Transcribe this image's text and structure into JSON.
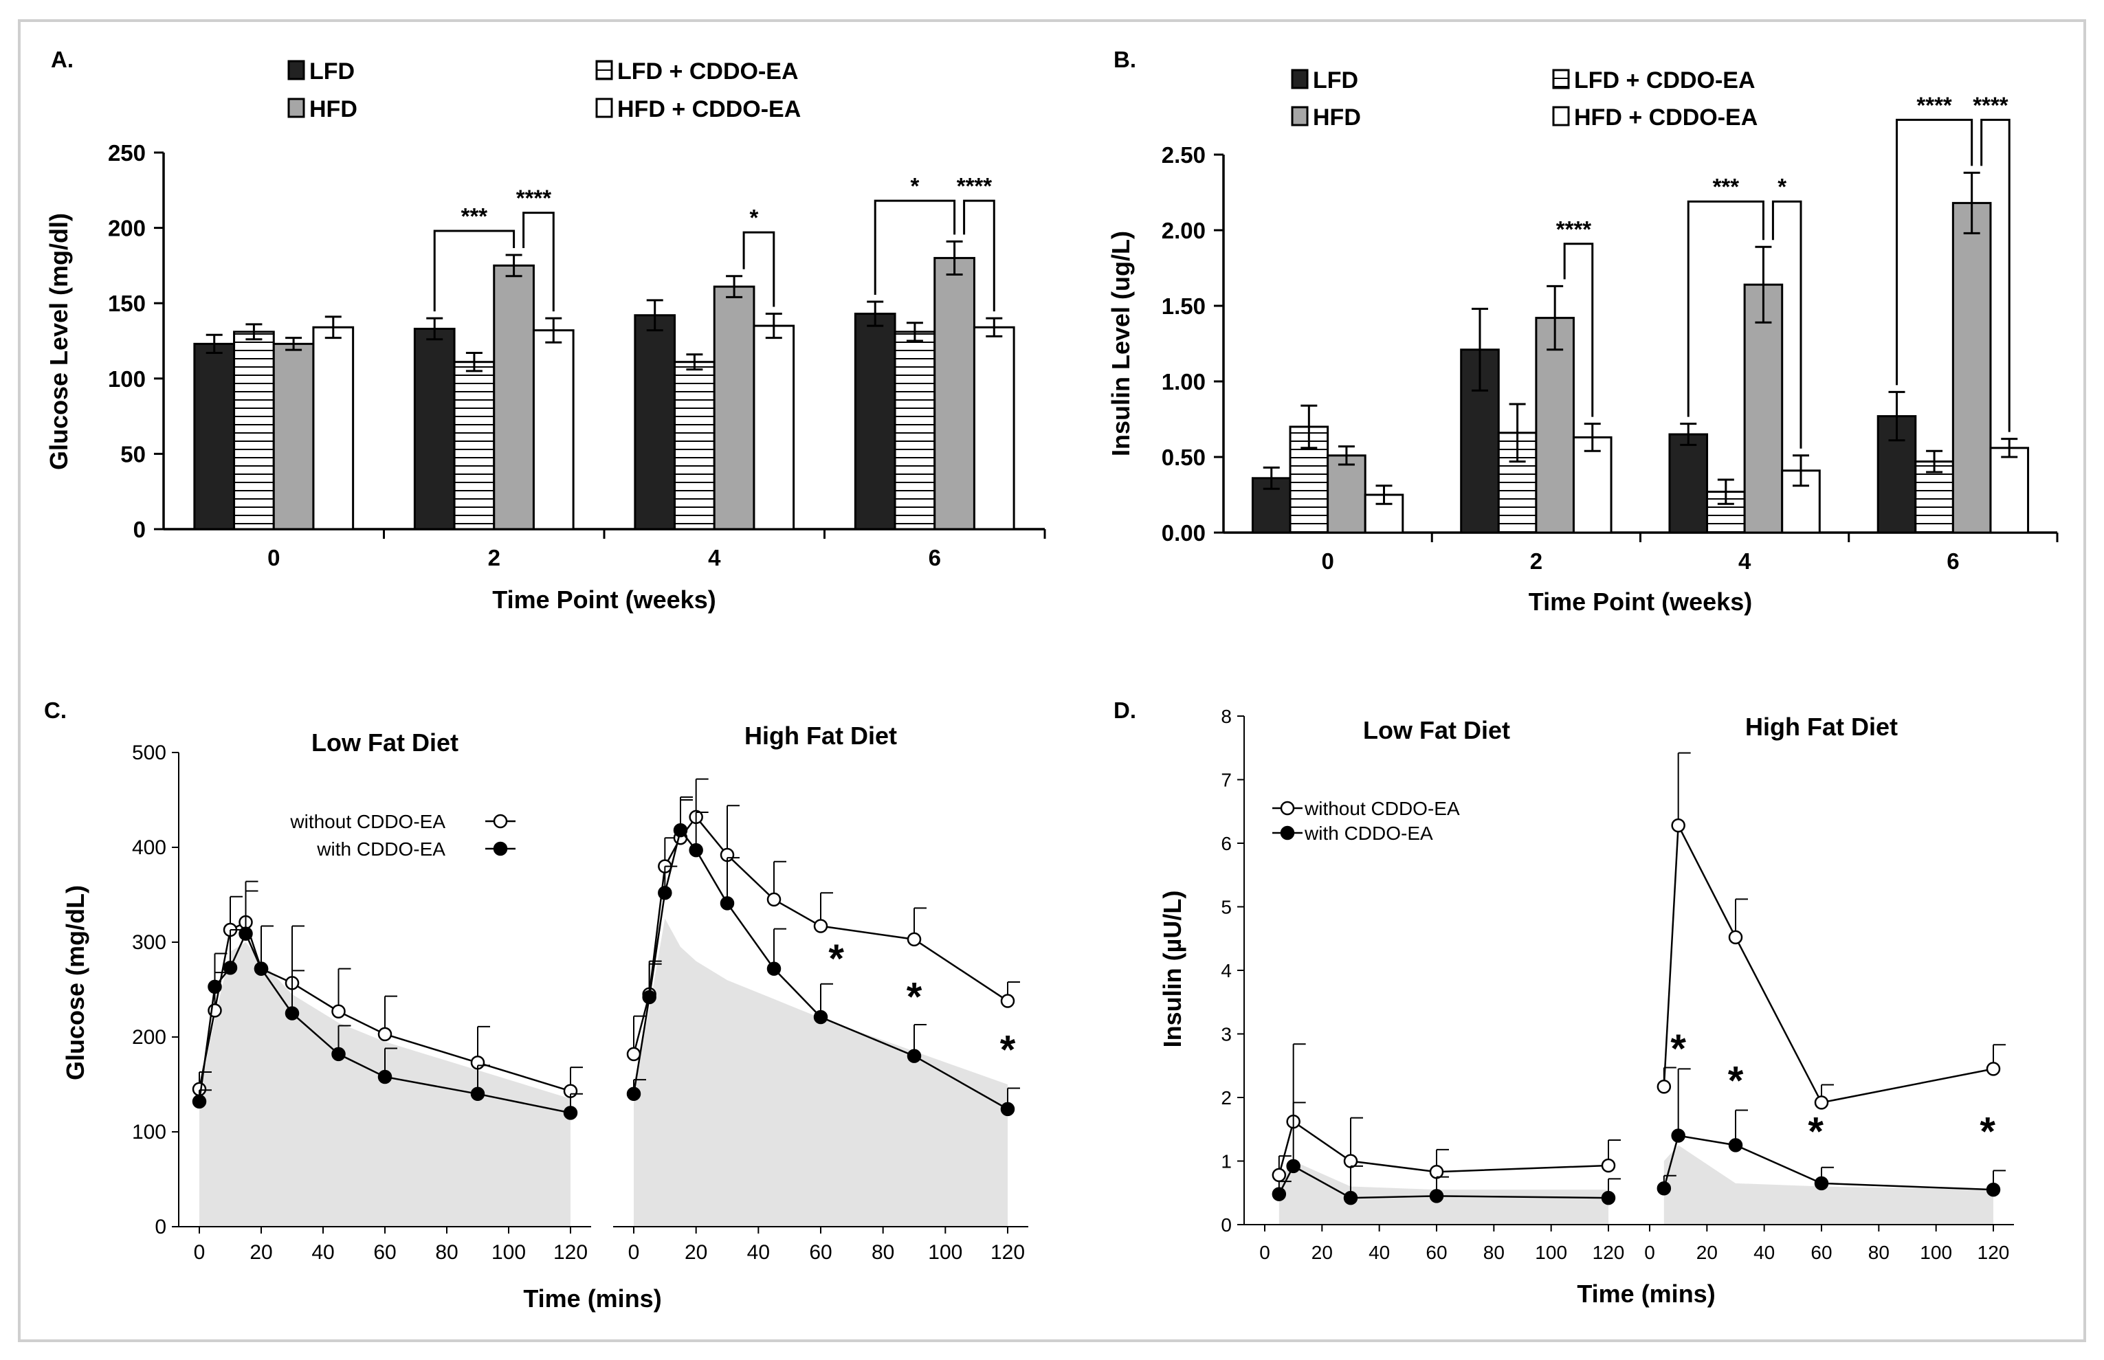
{
  "figure_colors": {
    "lfd": "#222222",
    "hfd": "#a6a6a6",
    "white": "#ffffff",
    "hatch": "#000000",
    "shade": "#e3e3e3",
    "shade_light": "#ececec"
  },
  "chart_data": [
    {
      "id": "A",
      "panel_label": "A.",
      "type": "bar",
      "xlabel": "Time Point (weeks)",
      "ylabel": "Glucose Level (mg/dl)",
      "ylim": [
        0,
        250
      ],
      "yticks": [
        "0",
        "50",
        "100",
        "150",
        "200",
        "250"
      ],
      "categories": [
        "0",
        "2",
        "4",
        "6"
      ],
      "legend": [
        "LFD",
        "HFD",
        "LFD + CDDO-EA",
        "HFD + CDDO-EA"
      ],
      "series": [
        {
          "name": "LFD",
          "style": "solid-dark",
          "values": [
            123,
            133,
            142,
            143
          ],
          "errors": [
            6,
            7,
            10,
            8
          ]
        },
        {
          "name": "LFD + CDDO-EA",
          "style": "hatched",
          "values": [
            131,
            111,
            111,
            131
          ],
          "errors": [
            5,
            6,
            5,
            6
          ]
        },
        {
          "name": "HFD",
          "style": "gray",
          "values": [
            123,
            175,
            161,
            180
          ],
          "errors": [
            4,
            7,
            7,
            11
          ]
        },
        {
          "name": "HFD + CDDO-EA",
          "style": "white",
          "values": [
            134,
            132,
            135,
            134
          ],
          "errors": [
            7,
            8,
            8,
            6
          ]
        }
      ],
      "significance": [
        {
          "category": "2",
          "from": "LFD",
          "to": "HFD",
          "label": "***",
          "level": 198
        },
        {
          "category": "2",
          "from": "HFD",
          "to": "HFD + CDDO-EA",
          "label": "****",
          "level": 210
        },
        {
          "category": "4",
          "from": "HFD",
          "to": "HFD + CDDO-EA",
          "label": "*",
          "level": 197
        },
        {
          "category": "6",
          "from": "LFD",
          "to": "HFD",
          "label": "*",
          "level": 218
        },
        {
          "category": "6",
          "from": "HFD",
          "to": "HFD + CDDO-EA",
          "label": "****",
          "level": 218
        }
      ]
    },
    {
      "id": "B",
      "panel_label": "B.",
      "type": "bar",
      "xlabel": "Time Point (weeks)",
      "ylabel": "Insulin Level (ug/L)",
      "ylim": [
        0,
        2.5
      ],
      "yticks": [
        "0.00",
        "0.50",
        "1.00",
        "1.50",
        "2.00",
        "2.50"
      ],
      "categories": [
        "0",
        "2",
        "4",
        "6"
      ],
      "legend": [
        "LFD",
        "HFD",
        "LFD + CDDO-EA",
        "HFD + CDDO-EA"
      ],
      "series": [
        {
          "name": "LFD",
          "style": "solid-dark",
          "values": [
            0.36,
            1.21,
            0.65,
            0.77
          ],
          "errors": [
            0.07,
            0.27,
            0.07,
            0.16
          ]
        },
        {
          "name": "LFD + CDDO-EA",
          "style": "hatched",
          "values": [
            0.7,
            0.66,
            0.27,
            0.47
          ],
          "errors": [
            0.14,
            0.19,
            0.08,
            0.07
          ]
        },
        {
          "name": "HFD",
          "style": "gray",
          "values": [
            0.51,
            1.42,
            1.64,
            2.18
          ],
          "errors": [
            0.06,
            0.21,
            0.25,
            0.2
          ]
        },
        {
          "name": "HFD + CDDO-EA",
          "style": "white",
          "values": [
            0.25,
            0.63,
            0.41,
            0.56
          ],
          "errors": [
            0.06,
            0.09,
            0.1,
            0.06
          ]
        }
      ],
      "significance": [
        {
          "category": "2",
          "from": "HFD",
          "to": "HFD + CDDO-EA",
          "label": "****",
          "level": 1.91
        },
        {
          "category": "4",
          "from": "LFD",
          "to": "HFD",
          "label": "***",
          "level": 2.19
        },
        {
          "category": "4",
          "from": "HFD",
          "to": "HFD + CDDO-EA",
          "label": "*",
          "level": 2.19
        },
        {
          "category": "6",
          "from": "LFD",
          "to": "HFD",
          "label": "****",
          "level": 2.73
        },
        {
          "category": "6",
          "from": "HFD",
          "to": "HFD + CDDO-EA",
          "label": "****",
          "level": 2.73
        }
      ]
    },
    {
      "id": "C",
      "panel_label": "C.",
      "type": "line",
      "xlabel": "Time (mins)",
      "ylabel": "Glucose (mg/dL)",
      "ylim": [
        0,
        500
      ],
      "xlim": [
        0,
        120
      ],
      "yticks": [
        "0",
        "100",
        "200",
        "300",
        "400",
        "500"
      ],
      "xticks": [
        "0",
        "20",
        "40",
        "60",
        "80",
        "100",
        "120"
      ],
      "legend": [
        "without  CDDO-EA",
        "with CDDO-EA"
      ],
      "subplots": [
        {
          "title": "Low Fat Diet",
          "x": [
            0,
            5,
            10,
            15,
            20,
            30,
            45,
            60,
            90,
            120
          ],
          "series": [
            {
              "name": "without  CDDO-EA",
              "marker": "open",
              "values": [
                145,
                228,
                313,
                321,
                272,
                257,
                227,
                203,
                173,
                143
              ],
              "errors": [
                18,
                40,
                35,
                43,
                45,
                60,
                45,
                40,
                38,
                25
              ]
            },
            {
              "name": "with CDDO-EA",
              "marker": "filled",
              "values": [
                132,
                253,
                273,
                309,
                272,
                225,
                182,
                158,
                140,
                120
              ],
              "errors": [
                12,
                35,
                40,
                45,
                45,
                45,
                30,
                30,
                30,
                20
              ]
            }
          ],
          "stars": [],
          "shade": [
            [
              0,
              140
            ],
            [
              5,
              220
            ],
            [
              10,
              290
            ],
            [
              15,
              300
            ],
            [
              20,
              280
            ],
            [
              30,
              245
            ],
            [
              45,
              215
            ],
            [
              60,
              195
            ],
            [
              90,
              165
            ],
            [
              120,
              135
            ]
          ]
        },
        {
          "title": "High Fat Diet",
          "x": [
            0,
            5,
            10,
            15,
            20,
            30,
            45,
            60,
            90,
            120
          ],
          "series": [
            {
              "name": "without  CDDO-EA",
              "marker": "open",
              "values": [
                182,
                245,
                380,
                410,
                432,
                392,
                345,
                317,
                303,
                238
              ],
              "errors": [
                40,
                35,
                30,
                40,
                40,
                52,
                40,
                35,
                33,
                20
              ]
            },
            {
              "name": "with CDDO-EA",
              "marker": "filled",
              "values": [
                140,
                242,
                352,
                418,
                397,
                341,
                272,
                221,
                180,
                124
              ],
              "errors": [
                15,
                35,
                28,
                35,
                40,
                48,
                42,
                35,
                33,
                22
              ]
            }
          ],
          "stars": [
            {
              "label": "*",
              "x": 65,
              "y": 268
            },
            {
              "label": "*",
              "x": 90,
              "y": 228
            },
            {
              "label": "*",
              "x": 120,
              "y": 172
            }
          ],
          "shade": [
            [
              0,
              150
            ],
            [
              5,
              230
            ],
            [
              10,
              325
            ],
            [
              15,
              295
            ],
            [
              20,
              280
            ],
            [
              30,
              260
            ],
            [
              45,
              240
            ],
            [
              60,
              220
            ],
            [
              90,
              185
            ],
            [
              120,
              150
            ]
          ]
        }
      ]
    },
    {
      "id": "D",
      "panel_label": "D.",
      "type": "line",
      "xlabel": "Time (mins)",
      "ylabel": "Insulin (µU/L)",
      "ylim": [
        0,
        8
      ],
      "xlim": [
        0,
        120
      ],
      "yticks": [
        "0",
        "1",
        "2",
        "3",
        "4",
        "5",
        "6",
        "7",
        "8"
      ],
      "xticks": [
        "0",
        "20",
        "40",
        "60",
        "80",
        "100",
        "120"
      ],
      "legend": [
        "without CDDO-EA",
        "with CDDO-EA"
      ],
      "subplots": [
        {
          "title": "Low Fat Diet",
          "x": [
            5,
            10,
            30,
            60,
            120
          ],
          "series": [
            {
              "name": "without CDDO-EA",
              "marker": "open",
              "values": [
                0.78,
                1.62,
                1.0,
                0.83,
                0.93
              ],
              "errors": [
                0.3,
                1.22,
                0.68,
                0.35,
                0.4
              ]
            },
            {
              "name": "with CDDO-EA",
              "marker": "filled",
              "values": [
                0.48,
                0.92,
                0.42,
                0.45,
                0.42
              ],
              "errors": [
                0.2,
                1.0,
                0.5,
                0.3,
                0.3
              ]
            }
          ],
          "stars": [],
          "shade": [
            [
              5,
              0.7
            ],
            [
              10,
              1.0
            ],
            [
              30,
              0.6
            ],
            [
              60,
              0.55
            ],
            [
              120,
              0.55
            ]
          ]
        },
        {
          "title": "High Fat Diet",
          "x": [
            5,
            10,
            30,
            60,
            120
          ],
          "series": [
            {
              "name": "without CDDO-EA",
              "marker": "open",
              "values": [
                2.17,
                6.28,
                4.52,
                1.92,
                2.45
              ],
              "errors": [
                0.3,
                1.14,
                0.6,
                0.28,
                0.38
              ]
            },
            {
              "name": "with CDDO-EA",
              "marker": "filled",
              "values": [
                0.57,
                1.4,
                1.25,
                0.65,
                0.55
              ],
              "errors": [
                0.2,
                1.05,
                0.55,
                0.25,
                0.3
              ]
            }
          ],
          "stars": [
            {
              "label": "*",
              "x": 10,
              "y": 2.55
            },
            {
              "label": "*",
              "x": 30,
              "y": 2.05
            },
            {
              "label": "*",
              "x": 58,
              "y": 1.25
            },
            {
              "label": "*",
              "x": 118,
              "y": 1.25
            }
          ],
          "shade": [
            [
              5,
              1.0
            ],
            [
              10,
              1.25
            ],
            [
              30,
              0.65
            ],
            [
              60,
              0.6
            ],
            [
              120,
              0.55
            ]
          ]
        }
      ]
    }
  ]
}
